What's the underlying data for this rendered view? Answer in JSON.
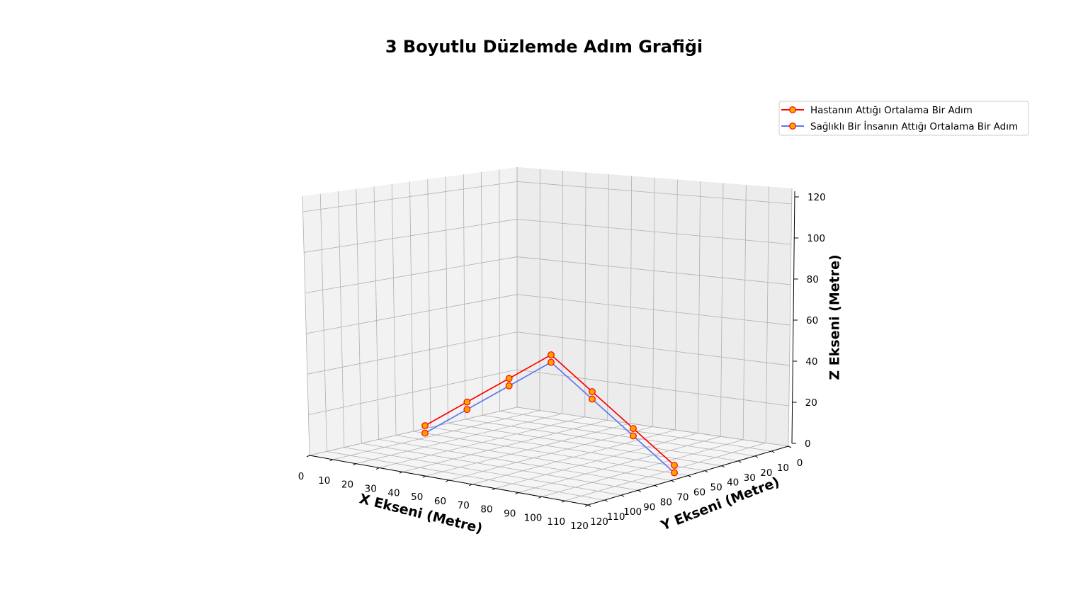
{
  "chart_data": {
    "type": "line3d",
    "title": "3 Boyutlu Düzlemde Adım Grafiği",
    "xlabel": "X Ekseni (Metre)",
    "ylabel": "Y Ekseni (Metre)",
    "zlabel": "Z Ekseni (Metre)",
    "xlim": [
      0,
      120
    ],
    "ylim": [
      0,
      120
    ],
    "zlim": [
      0,
      120
    ],
    "x_ticks": [
      "0",
      "10",
      "20",
      "30",
      "40",
      "50",
      "60",
      "70",
      "80",
      "90",
      "100",
      "110",
      "120"
    ],
    "y_ticks": [
      "0",
      "10",
      "20",
      "30",
      "40",
      "50",
      "60",
      "70",
      "80",
      "90",
      "100",
      "110",
      "120"
    ],
    "z_ticks": [
      "0",
      "20",
      "40",
      "60",
      "80",
      "100",
      "120"
    ],
    "grid": true,
    "legend_position": "top-right",
    "series": [
      {
        "name": "Hastanın Attığı Ortalama Bir Adım",
        "line_color": "#ff0000",
        "marker_face": "#ffa500",
        "marker_edge": "#ff0000",
        "points": [
          {
            "x": 10,
            "y": 10,
            "z": 10
          },
          {
            "x": 20,
            "y": 20,
            "z": 20
          },
          {
            "x": 30,
            "y": 30,
            "z": 30
          },
          {
            "x": 40,
            "y": 40,
            "z": 40
          },
          {
            "x": 50,
            "y": 50,
            "z": 30
          },
          {
            "x": 60,
            "y": 60,
            "z": 20
          },
          {
            "x": 70,
            "y": 70,
            "z": 10
          }
        ]
      },
      {
        "name": "Sağlıklı Bir İnsanın Attığı Ortalama Bir Adım",
        "line_color": "#5b78f0",
        "marker_face": "#ffa500",
        "marker_edge": "#ff0000",
        "points": [
          {
            "x": 10,
            "y": 10,
            "z": 5
          },
          {
            "x": 20,
            "y": 20,
            "z": 15
          },
          {
            "x": 30,
            "y": 30,
            "z": 25
          },
          {
            "x": 40,
            "y": 40,
            "z": 35
          },
          {
            "x": 50,
            "y": 50,
            "z": 25
          },
          {
            "x": 60,
            "y": 60,
            "z": 15
          },
          {
            "x": 70,
            "y": 70,
            "z": 5
          }
        ]
      }
    ]
  }
}
